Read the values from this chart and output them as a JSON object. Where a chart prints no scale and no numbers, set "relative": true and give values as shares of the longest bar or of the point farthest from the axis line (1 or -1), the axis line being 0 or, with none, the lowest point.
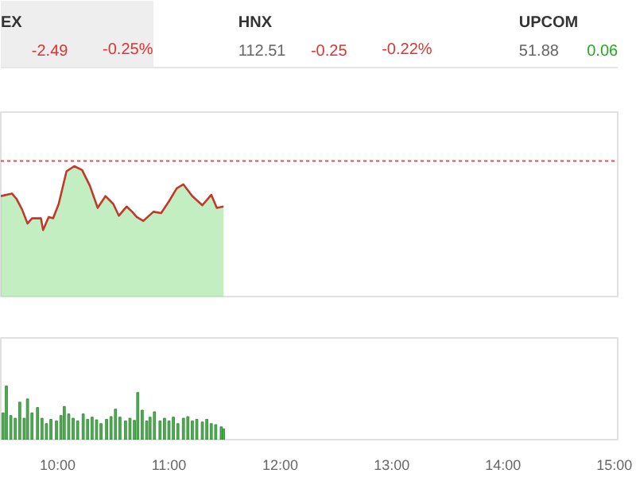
{
  "chart_data": [
    {
      "type": "other",
      "annotations": [
        "EX",
        "-2.49",
        "-0.25%",
        "HNX",
        "112.51",
        "-0.25",
        "-0.22%",
        "UPCOM",
        "51.88",
        "0.06"
      ]
    },
    {
      "type": "area",
      "relative": true,
      "xlim": [
        9.49,
        15.03
      ],
      "tick_labels": false,
      "grid": false,
      "series": [
        {
          "type": "area",
          "color": "#8fe08f",
          "x": [
            9.49,
            9.59,
            9.63,
            9.68,
            9.73,
            9.77,
            9.85,
            9.87,
            9.92,
            9.96,
            10.01,
            10.08,
            10.15,
            10.22,
            10.29,
            10.36,
            10.43,
            10.5,
            10.55,
            10.62,
            10.67,
            10.71,
            10.77,
            10.86,
            10.93,
            11.0,
            11.07,
            11.13,
            11.21,
            11.3,
            11.38,
            11.43,
            11.49
          ],
          "values": [
            0.77,
            0.79,
            0.75,
            0.67,
            0.56,
            0.6,
            0.6,
            0.51,
            0.61,
            0.6,
            0.71,
            0.96,
            1,
            0.97,
            0.85,
            0.68,
            0.77,
            0.71,
            0.62,
            0.69,
            0.65,
            0.61,
            0.58,
            0.65,
            0.64,
            0.73,
            0.83,
            0.86,
            0.77,
            0.7,
            0.78,
            0.68,
            0.69
          ]
        },
        {
          "type": "line",
          "color": "#c0392b",
          "x": [
            9.49,
            9.59,
            9.63,
            9.68,
            9.73,
            9.77,
            9.85,
            9.87,
            9.92,
            9.96,
            10.01,
            10.08,
            10.15,
            10.22,
            10.29,
            10.36,
            10.43,
            10.5,
            10.55,
            10.62,
            10.67,
            10.71,
            10.77,
            10.86,
            10.93,
            11.0,
            11.07,
            11.13,
            11.21,
            11.3,
            11.38,
            11.43,
            11.49
          ],
          "values": [
            0.77,
            0.79,
            0.75,
            0.67,
            0.56,
            0.6,
            0.6,
            0.51,
            0.61,
            0.6,
            0.71,
            0.96,
            1,
            0.97,
            0.85,
            0.68,
            0.77,
            0.71,
            0.62,
            0.69,
            0.65,
            0.61,
            0.58,
            0.65,
            0.64,
            0.73,
            0.83,
            0.86,
            0.77,
            0.7,
            0.78,
            0.68,
            0.69
          ]
        }
      ],
      "ref_lines": [
        {
          "axis": "y",
          "value": 1.04,
          "color": "#e05050",
          "line_style": "dotted"
        }
      ]
    },
    {
      "type": "bar",
      "relative": true,
      "xlim": [
        9.49,
        15.03
      ],
      "tick_labels": "x",
      "xticks": [
        {
          "value": 10,
          "label": "10:00"
        },
        {
          "value": 11,
          "label": "11:00"
        },
        {
          "value": 12,
          "label": "12:00"
        },
        {
          "value": 13,
          "label": "13:00"
        },
        {
          "value": 14,
          "label": "14:00"
        },
        {
          "value": 15,
          "label": "15:00"
        }
      ],
      "series": [
        {
          "color": "#4caf50",
          "x": [
            9.51,
            9.54,
            9.58,
            9.62,
            9.66,
            9.7,
            9.73,
            9.77,
            9.82,
            9.86,
            9.9,
            9.94,
            9.99,
            10.03,
            10.06,
            10.1,
            10.14,
            10.18,
            10.23,
            10.27,
            10.31,
            10.35,
            10.39,
            10.44,
            10.48,
            10.52,
            10.56,
            10.61,
            10.65,
            10.69,
            10.72,
            10.76,
            10.8,
            10.83,
            10.87,
            10.92,
            10.96,
            11.0,
            11.04,
            11.08,
            11.13,
            11.17,
            11.21,
            11.25,
            11.3,
            11.34,
            11.38,
            11.42,
            11.47,
            11.49
          ],
          "values": [
            0.5,
            1.0,
            0.45,
            0.4,
            0.7,
            0.4,
            0.76,
            0.5,
            0.6,
            0.4,
            0.3,
            0.38,
            0.35,
            0.45,
            0.62,
            0.48,
            0.4,
            0.35,
            0.48,
            0.38,
            0.42,
            0.37,
            0.3,
            0.38,
            0.43,
            0.57,
            0.42,
            0.35,
            0.4,
            0.36,
            0.88,
            0.55,
            0.35,
            0.42,
            0.52,
            0.35,
            0.4,
            0.35,
            0.42,
            0.3,
            0.4,
            0.43,
            0.35,
            0.38,
            0.33,
            0.38,
            0.3,
            0.28,
            0.24,
            0.2
          ]
        }
      ]
    }
  ]
}
